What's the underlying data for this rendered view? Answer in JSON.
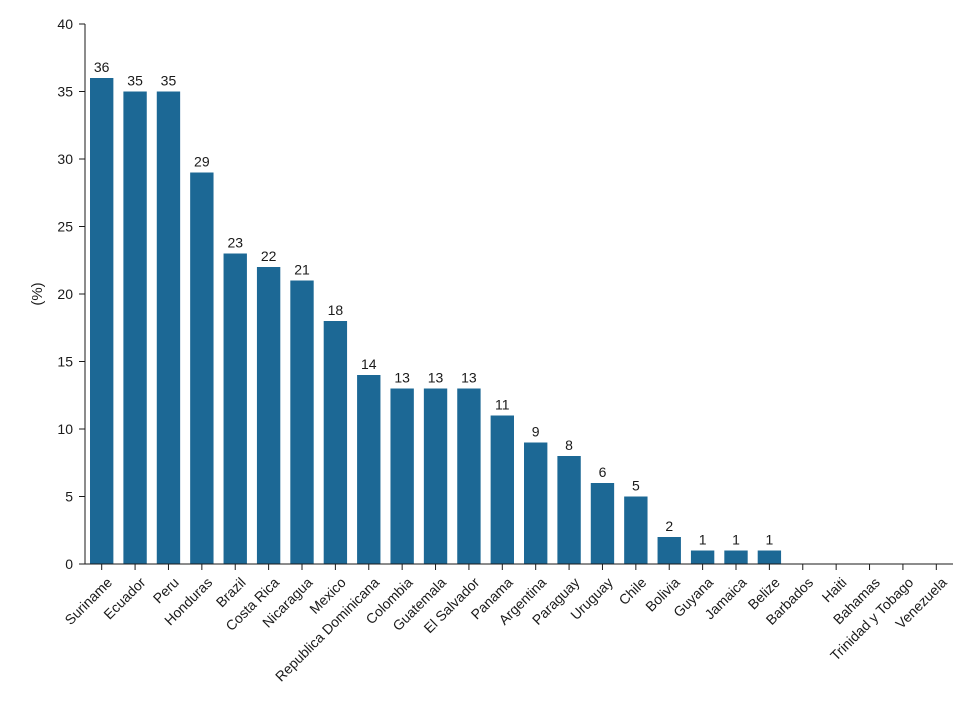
{
  "chart_data": {
    "type": "bar",
    "title": "",
    "xlabel": "",
    "ylabel": "(%)",
    "ylim": [
      0,
      40
    ],
    "yticks": [
      0,
      5,
      10,
      15,
      20,
      25,
      30,
      35,
      40
    ],
    "grid": false,
    "bar_color": "#1c6895",
    "categories": [
      "Suriname",
      "Ecuador",
      "Peru",
      "Honduras",
      "Brazil",
      "Costa Rica",
      "Nicaragua",
      "Mexico",
      "Republica Dominicana",
      "Colombia",
      "Guatemala",
      "El Salvador",
      "Panama",
      "Argentina",
      "Paraguay",
      "Uruguay",
      "Chile",
      "Bolivia",
      "Guyana",
      "Jamaica",
      "Belize",
      "Barbados",
      "Haiti",
      "Bahamas",
      "Trinidad y Tobago",
      "Venezuela"
    ],
    "values": [
      36,
      35,
      35,
      29,
      23,
      22,
      21,
      18,
      14,
      13,
      13,
      13,
      11,
      9,
      8,
      6,
      5,
      2,
      1,
      1,
      1,
      null,
      null,
      null,
      null,
      null
    ]
  }
}
